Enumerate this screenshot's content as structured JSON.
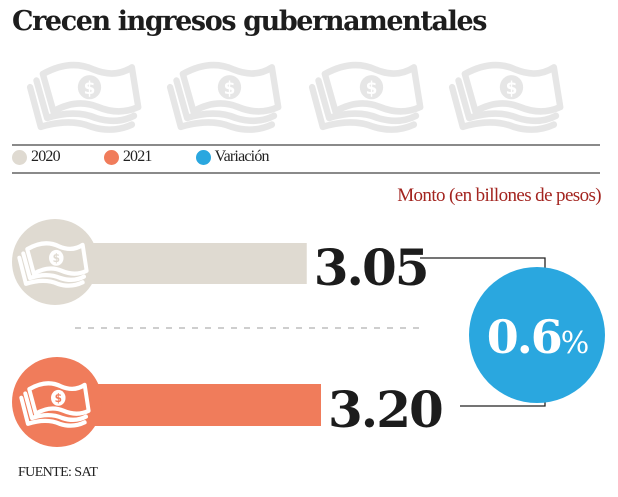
{
  "header": {
    "title": "Crecen ingresos gubernamentales"
  },
  "decoration": {
    "icon": "money-bill-icon",
    "count": 4,
    "color": "#e6e6e6"
  },
  "legend": [
    {
      "label": "2020",
      "color": "#dfdad1"
    },
    {
      "label": "2021",
      "color": "#f07c5b"
    },
    {
      "label": "Variación",
      "color": "#2aa7df"
    }
  ],
  "unit_label": "Monto (en billones de pesos)",
  "source": "FUENTE: SAT",
  "chart_data": {
    "type": "bar",
    "orientation": "horizontal",
    "title": "Crecen ingresos gubernamentales",
    "xlabel": "",
    "ylabel": "Monto (en billones de pesos)",
    "categories": [
      "2020",
      "2021"
    ],
    "values": [
      3.05,
      3.2
    ],
    "value_labels": [
      "3.05",
      "3.20"
    ],
    "colors": [
      "#dfdad1",
      "#f07c5b"
    ],
    "bar_icon": "money-bill-icon",
    "variation": {
      "label": "Variación",
      "value": 0.6,
      "display": "0.6%",
      "color": "#2aa7df"
    },
    "legend_position": "top-left",
    "grid": false
  }
}
